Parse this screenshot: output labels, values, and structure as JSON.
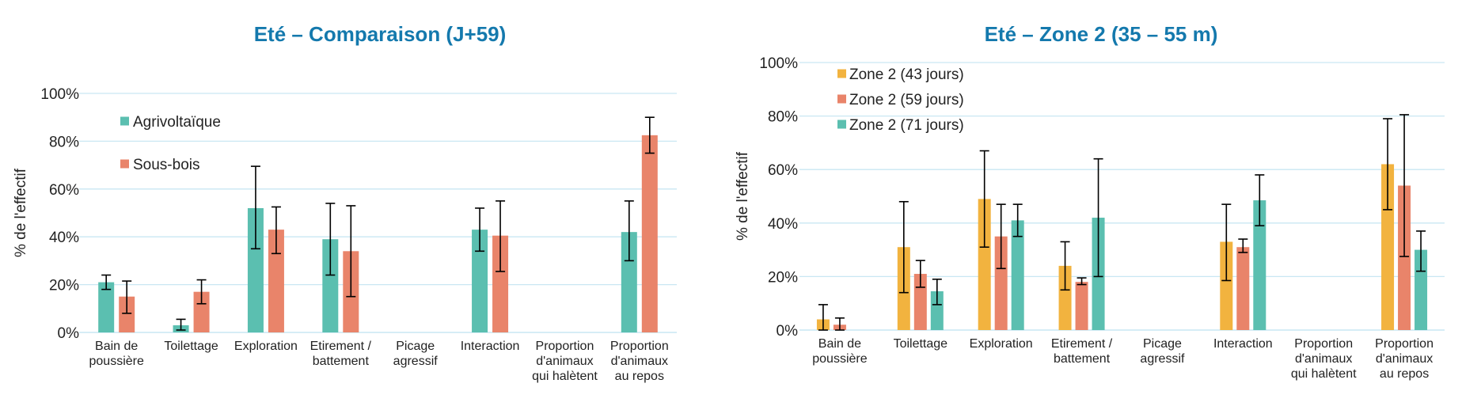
{
  "chart_data": [
    {
      "type": "bar",
      "title": "Eté – Comparaison (J+59)",
      "xlabel": "",
      "ylabel": "% de l'effectif",
      "ylim": [
        0,
        100
      ],
      "yticks": [
        "0%",
        "20%",
        "40%",
        "60%",
        "80%",
        "100%"
      ],
      "legend_position": "top-left",
      "categories": [
        [
          "Bain de",
          "poussière"
        ],
        [
          "Toilettage"
        ],
        [
          "Exploration"
        ],
        [
          "Etirement /",
          "battement"
        ],
        [
          "Picage",
          "agressif"
        ],
        [
          "Interaction"
        ],
        [
          "Proportion",
          "d'animaux",
          "qui halètent"
        ],
        [
          "Proportion",
          "d'animaux",
          "au repos"
        ]
      ],
      "series": [
        {
          "name": "Agrivoltaïque",
          "color": "#5bbfb0",
          "values": [
            21,
            3,
            52,
            39,
            null,
            43,
            null,
            42
          ],
          "err_low": [
            18,
            1,
            35,
            24,
            null,
            34,
            null,
            30
          ],
          "err_high": [
            24,
            5.5,
            69.5,
            54,
            null,
            52,
            null,
            55
          ]
        },
        {
          "name": "Sous-bois",
          "color": "#e9846a",
          "values": [
            15,
            17,
            43,
            34,
            null,
            40.5,
            null,
            82.5
          ],
          "err_low": [
            8,
            12,
            33,
            15,
            null,
            25.5,
            null,
            75
          ],
          "err_high": [
            21.5,
            22,
            52.5,
            53,
            null,
            55,
            null,
            90
          ]
        }
      ]
    },
    {
      "type": "bar",
      "title": "Eté – Zone 2 (35 – 55 m)",
      "xlabel": "",
      "ylabel": "% de l'effectif",
      "ylim": [
        0,
        100
      ],
      "yticks": [
        "0%",
        "20%",
        "40%",
        "60%",
        "80%",
        "100%"
      ],
      "legend_position": "top-left",
      "categories": [
        [
          "Bain de",
          "poussière"
        ],
        [
          "Toilettage"
        ],
        [
          "Exploration"
        ],
        [
          "Etirement /",
          "battement"
        ],
        [
          "Picage",
          "agressif"
        ],
        [
          "Interaction"
        ],
        [
          "Proportion",
          "d'animaux",
          "qui halètent"
        ],
        [
          "Proportion",
          "d'animaux",
          "au repos"
        ]
      ],
      "series": [
        {
          "name": "Zone 2 (43 jours)",
          "color": "#f2b33f",
          "values": [
            4,
            31,
            49,
            24,
            null,
            33,
            null,
            62
          ],
          "err_low": [
            0,
            14,
            31,
            15,
            null,
            18.5,
            null,
            45
          ],
          "err_high": [
            9.5,
            48,
            67,
            33,
            null,
            47,
            null,
            79
          ]
        },
        {
          "name": "Zone 2 (59 jours)",
          "color": "#e9846a",
          "values": [
            2,
            21,
            35,
            18,
            null,
            31,
            null,
            54
          ],
          "err_low": [
            0,
            16,
            23,
            17,
            null,
            29,
            null,
            27.5
          ],
          "err_high": [
            4.5,
            26,
            47,
            19.5,
            null,
            34,
            null,
            80.5
          ]
        },
        {
          "name": "Zone 2 (71 jours)",
          "color": "#5bbfb0",
          "values": [
            null,
            14.5,
            41,
            42,
            null,
            48.5,
            null,
            30
          ],
          "err_low": [
            null,
            9.5,
            35,
            20,
            null,
            39,
            null,
            22
          ],
          "err_high": [
            null,
            19,
            47,
            64,
            null,
            58,
            null,
            37
          ]
        }
      ]
    }
  ]
}
